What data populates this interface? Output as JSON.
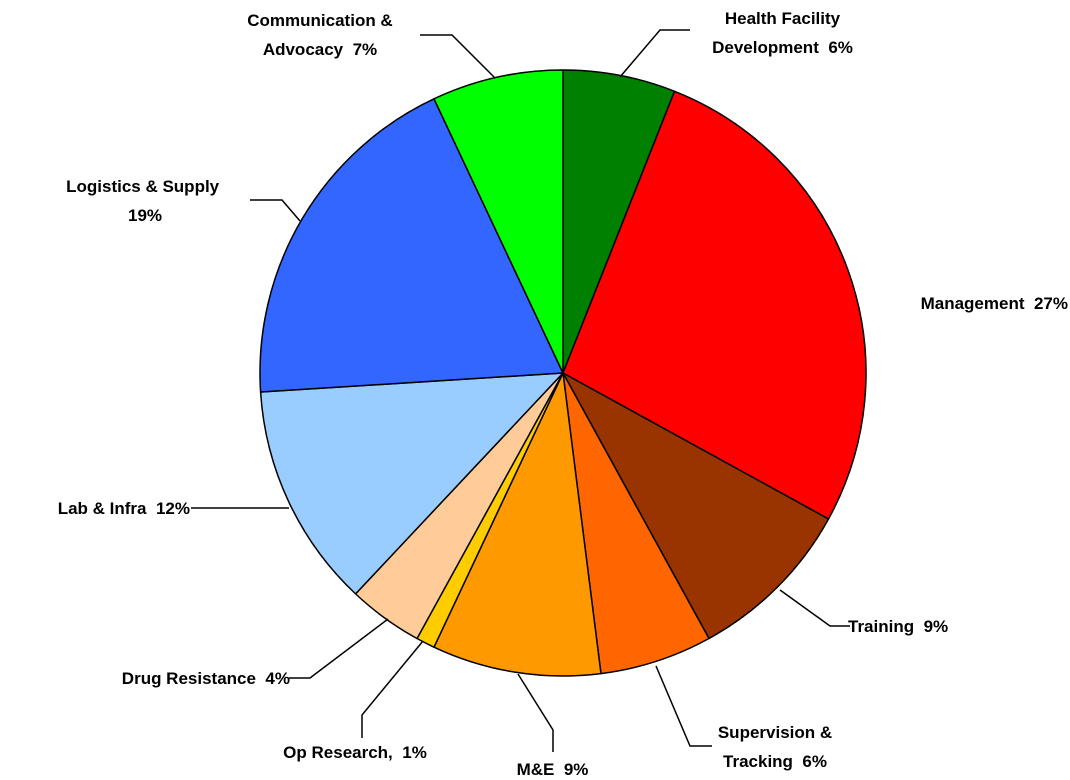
{
  "chart_data": {
    "type": "pie",
    "categories": [
      "Health Facility Development",
      "Management",
      "Training",
      "Supervision & Tracking",
      "M&E",
      "Op Research,",
      "Drug Resistance",
      "Lab & Infra",
      "Logistics & Supply",
      "Communication & Advocacy"
    ],
    "values": [
      6,
      27,
      9,
      6,
      9,
      1,
      4,
      12,
      19,
      7
    ],
    "value_labels": [
      "6%",
      "27%",
      "9%",
      "6%",
      "9%",
      "1%",
      "4%",
      "12%",
      "19%",
      "7%"
    ],
    "colors": [
      "#008000",
      "#ff0000",
      "#993300",
      "#ff6600",
      "#ff9900",
      "#ffcc00",
      "#ffcc99",
      "#99ccff",
      "#3366ff",
      "#00ff00"
    ]
  }
}
